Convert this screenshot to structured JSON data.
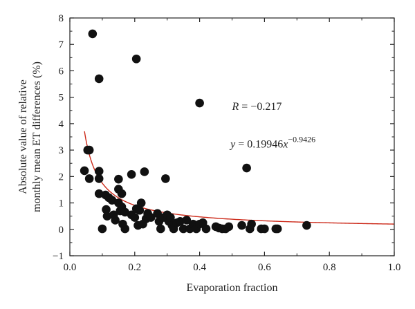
{
  "chart_data": {
    "type": "scatter",
    "title": "",
    "xlabel": "Evaporation fraction",
    "ylabel_lines": [
      "Absolute value of relative",
      "monthly mean ET differences (%)"
    ],
    "xlim": [
      0.0,
      1.0
    ],
    "ylim": [
      -1,
      8
    ],
    "x_ticks": [
      0.0,
      0.2,
      0.4,
      0.6,
      0.8,
      1.0
    ],
    "x_tick_labels": [
      "0.0",
      "0.2",
      "0.4",
      "0.6",
      "0.8",
      "1.0"
    ],
    "y_ticks": [
      -1,
      0,
      1,
      2,
      3,
      4,
      5,
      6,
      7,
      8
    ],
    "y_tick_labels": [
      "−1",
      "0",
      "1",
      "2",
      "3",
      "4",
      "5",
      "6",
      "7",
      "8"
    ],
    "grid": false,
    "colors": {
      "points": "#111111",
      "fit": "#cc2a1a",
      "axis": "#222222"
    },
    "annotations": {
      "r_label": "R",
      "r_value": " = −0.217",
      "fit_label_y": "y",
      "fit_label_eq": " = 0.19946",
      "fit_label_x": "x",
      "fit_label_exp": "−0.9426"
    },
    "fit": {
      "coefficient": 0.19946,
      "exponent": -0.9426,
      "x_start": 0.045,
      "x_end": 1.0
    },
    "points": [
      [
        0.07,
        7.4
      ],
      [
        0.205,
        6.45
      ],
      [
        0.09,
        5.7
      ],
      [
        0.4,
        4.78
      ],
      [
        0.545,
        2.32
      ],
      [
        0.045,
        2.22
      ],
      [
        0.055,
        3.0
      ],
      [
        0.06,
        3.0
      ],
      [
        0.06,
        1.92
      ],
      [
        0.09,
        2.2
      ],
      [
        0.09,
        1.92
      ],
      [
        0.09,
        1.35
      ],
      [
        0.1,
        0.02
      ],
      [
        0.11,
        1.3
      ],
      [
        0.112,
        0.75
      ],
      [
        0.115,
        0.5
      ],
      [
        0.12,
        1.2
      ],
      [
        0.13,
        1.1
      ],
      [
        0.135,
        0.55
      ],
      [
        0.14,
        0.35
      ],
      [
        0.15,
        1.9
      ],
      [
        0.15,
        1.52
      ],
      [
        0.15,
        1.0
      ],
      [
        0.155,
        0.7
      ],
      [
        0.16,
        1.35
      ],
      [
        0.16,
        0.85
      ],
      [
        0.163,
        0.2
      ],
      [
        0.17,
        0.02
      ],
      [
        0.17,
        0.65
      ],
      [
        0.19,
        2.08
      ],
      [
        0.19,
        0.55
      ],
      [
        0.2,
        0.45
      ],
      [
        0.205,
        0.78
      ],
      [
        0.21,
        0.15
      ],
      [
        0.215,
        0.72
      ],
      [
        0.22,
        1.0
      ],
      [
        0.225,
        0.2
      ],
      [
        0.23,
        2.18
      ],
      [
        0.235,
        0.4
      ],
      [
        0.24,
        0.6
      ],
      [
        0.25,
        0.45
      ],
      [
        0.27,
        0.6
      ],
      [
        0.275,
        0.3
      ],
      [
        0.28,
        0.02
      ],
      [
        0.29,
        0.45
      ],
      [
        0.295,
        1.92
      ],
      [
        0.3,
        0.55
      ],
      [
        0.305,
        0.3
      ],
      [
        0.31,
        0.45
      ],
      [
        0.315,
        0.15
      ],
      [
        0.32,
        0.02
      ],
      [
        0.33,
        0.25
      ],
      [
        0.34,
        0.3
      ],
      [
        0.35,
        0.02
      ],
      [
        0.36,
        0.35
      ],
      [
        0.37,
        0.02
      ],
      [
        0.38,
        0.2
      ],
      [
        0.39,
        0.02
      ],
      [
        0.4,
        0.2
      ],
      [
        0.41,
        0.25
      ],
      [
        0.42,
        0.02
      ],
      [
        0.45,
        0.1
      ],
      [
        0.46,
        0.05
      ],
      [
        0.47,
        0.02
      ],
      [
        0.48,
        0.02
      ],
      [
        0.49,
        0.1
      ],
      [
        0.53,
        0.15
      ],
      [
        0.555,
        0.02
      ],
      [
        0.56,
        0.2
      ],
      [
        0.59,
        0.02
      ],
      [
        0.6,
        0.02
      ],
      [
        0.635,
        0.02
      ],
      [
        0.64,
        0.02
      ],
      [
        0.73,
        0.15
      ]
    ]
  }
}
